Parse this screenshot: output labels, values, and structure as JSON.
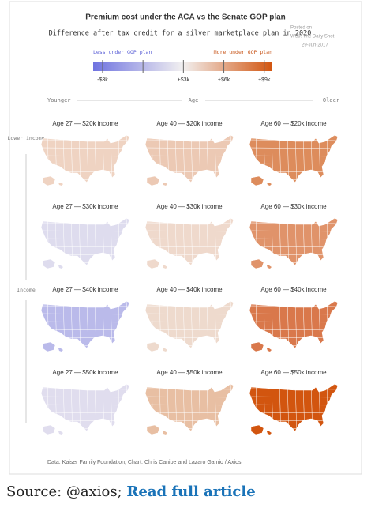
{
  "chart_data": {
    "type": "map-grid",
    "title": "Premium cost under the ACA vs the Senate GOP plan",
    "subtitle": "Difference after tax credit for a silver marketplace plan in 2020",
    "watermark": [
      "Posted on",
      "WSJ: The Daily Shot",
      "29-Jun-2017"
    ],
    "legend_left": "Less under GOP plan",
    "legend_right": "More under GOP plan",
    "legend_colors": [
      "#6f73e0",
      "#f2f0f0",
      "#d2550f"
    ],
    "legend_lim": [
      -3.7,
      9.6
    ],
    "legend_ticks": [
      {
        "value": -3,
        "label": "-$3k"
      },
      {
        "value": 0,
        "label": ""
      },
      {
        "value": 3,
        "label": "+$3k"
      },
      {
        "value": 6,
        "label": "+$6k"
      },
      {
        "value": 9,
        "label": "+$9k"
      }
    ],
    "x_axis": {
      "left": "Younger",
      "label": "Age",
      "right": "Older"
    },
    "y_axis": {
      "top": "Lower income",
      "label": "Income"
    },
    "panels": [
      {
        "title": "Age 27 — $20k income",
        "color": "#efd3c2"
      },
      {
        "title": "Age 40 — $20k income",
        "color": "#ecc9b4"
      },
      {
        "title": "Age 60 — $20k income",
        "color": "#dd8c5c"
      },
      {
        "title": "Age 27 — $30k income",
        "color": "#dedcee"
      },
      {
        "title": "Age 40 — $30k income",
        "color": "#efd9cc"
      },
      {
        "title": "Age 60 — $30k income",
        "color": "#e0936a"
      },
      {
        "title": "Age 27 — $40k income",
        "color": "#babaea"
      },
      {
        "title": "Age 40 — $40k income",
        "color": "#eedacd"
      },
      {
        "title": "Age 60 — $40k income",
        "color": "#d9784b"
      },
      {
        "title": "Age 27 — $50k income",
        "color": "#e0ddee"
      },
      {
        "title": "Age 40 — $50k income",
        "color": "#e8bfa3"
      },
      {
        "title": "Age 60 — $50k income",
        "color": "#d2550f"
      }
    ],
    "footer": "Data: Kaiser Family Foundation; Chart: Chris Canipe and Lazaro Gamio / Axios"
  },
  "source": {
    "prefix": "Source: @axios;",
    "link": "Read full article"
  }
}
